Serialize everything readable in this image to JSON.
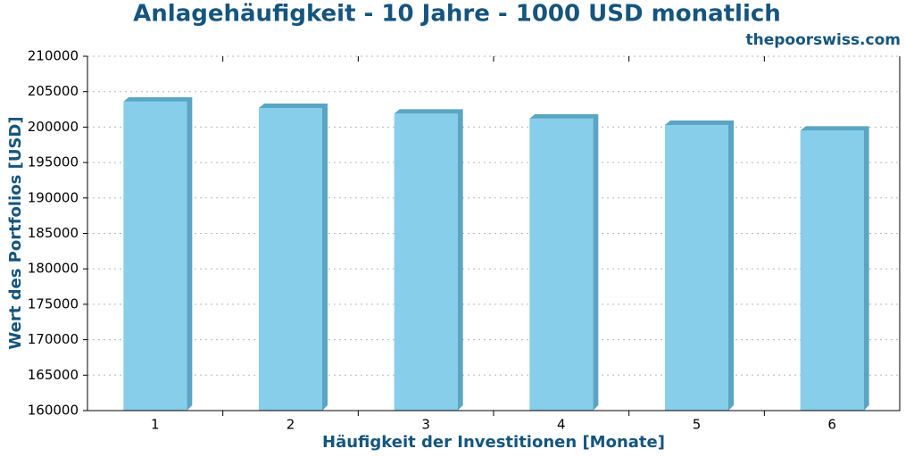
{
  "chart_data": {
    "type": "bar",
    "title": "Anlagehäufigkeit - 10 Jahre - 1000 USD monatlich",
    "subtitle": "thepoorswiss.com",
    "x_label": "Häufigkeit der Investitionen [Monate]",
    "y_label": "Wert des Portfolios [USD]",
    "categories": [
      "1",
      "2",
      "3",
      "4",
      "5",
      "6"
    ],
    "values": [
      203600,
      202700,
      201900,
      201200,
      200300,
      199500
    ],
    "color": "#87ceeb",
    "side_color": "#5aa5c4",
    "ylim": [
      160000,
      210000
    ],
    "yticks": [
      160000,
      165000,
      170000,
      175000,
      180000,
      185000,
      190000,
      195000,
      200000,
      205000,
      210000
    ],
    "grid": true
  }
}
